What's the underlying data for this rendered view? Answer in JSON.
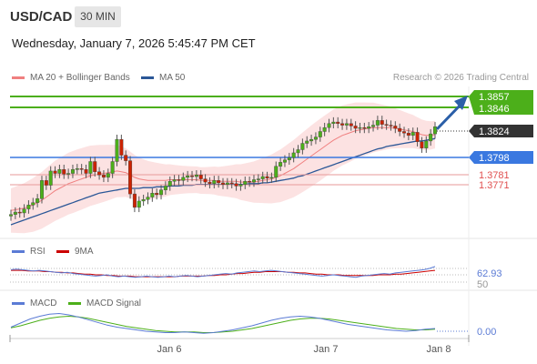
{
  "header": {
    "symbol": "USD/CAD",
    "timeframe": "30 MIN",
    "datetime": "Wednesday, January 7, 2026 5:45:47 PM CET",
    "credit": "Research © 2026 Trading Central"
  },
  "legend_main": [
    {
      "label": "MA 20 + Bollinger Bands",
      "color": "#f08080"
    },
    {
      "label": "MA 50",
      "color": "#2b5797"
    }
  ],
  "legend_rsi": [
    {
      "label": "RSI",
      "color": "#5b7bd5"
    },
    {
      "label": "9MA",
      "color": "#cc0000"
    }
  ],
  "legend_macd": [
    {
      "label": "MACD",
      "color": "#5b7bd5"
    },
    {
      "label": "MACD Signal",
      "color": "#4caf1a"
    }
  ],
  "levels": {
    "target_high": "1.3857",
    "target_low": "1.3846",
    "last": "1.3824",
    "pivot": "1.3798",
    "support1": "1.3781",
    "support2": "1.3771",
    "rsi_value": "62.93",
    "rsi_mid": "50",
    "macd_value": "0.00"
  },
  "colors": {
    "green": "#4caf1a",
    "blue": "#3a78e0",
    "red": "#e05050",
    "dark": "#333333",
    "candle_up": "#4caf1a",
    "candle_down": "#cc2200",
    "band_fill": "#fbd8d8",
    "arrow": "#2b5fa8"
  },
  "chart_data": {
    "type": "candlestick",
    "price_axis": {
      "ylim": [
        1.3685,
        1.3875
      ]
    },
    "x_ticks": [
      "Jan 6",
      "Jan 7",
      "Jan 8"
    ],
    "close": [
      1.3713,
      1.3716,
      1.3715,
      1.372,
      1.3725,
      1.3728,
      1.3733,
      1.3756,
      1.375,
      1.3768,
      1.3765,
      1.377,
      1.3764,
      1.3765,
      1.377,
      1.3771,
      1.377,
      1.3765,
      1.378,
      1.3767,
      1.3763,
      1.376,
      1.3765,
      1.378,
      1.3808,
      1.3788,
      1.3781,
      1.3739,
      1.3722,
      1.373,
      1.3732,
      1.3735,
      1.374,
      1.3738,
      1.3744,
      1.3749,
      1.3755,
      1.3757,
      1.3756,
      1.376,
      1.3762,
      1.3761,
      1.3763,
      1.3758,
      1.3754,
      1.3752,
      1.3756,
      1.3753,
      1.3751,
      1.3753,
      1.3752,
      1.3749,
      1.3751,
      1.3755,
      1.3754,
      1.3757,
      1.3758,
      1.3761,
      1.3759,
      1.376,
      1.3774,
      1.3779,
      1.3782,
      1.3785,
      1.3791,
      1.3795,
      1.3803,
      1.3806,
      1.3808,
      1.3811,
      1.3818,
      1.3823,
      1.3828,
      1.383,
      1.3828,
      1.3826,
      1.3828,
      1.3825,
      1.3822,
      1.3823,
      1.3822,
      1.3824,
      1.3826,
      1.3832,
      1.3827,
      1.3826,
      1.3825,
      1.3822,
      1.3818,
      1.3816,
      1.3813,
      1.3817,
      1.3805,
      1.3797,
      1.3806,
      1.3815,
      1.3824
    ],
    "ma20": [
      1.3718,
      1.3719,
      1.372,
      1.3721,
      1.3723,
      1.3725,
      1.3728,
      1.3731,
      1.3735,
      1.3739,
      1.3743,
      1.3746,
      1.3749,
      1.3752,
      1.3754,
      1.3756,
      1.3758,
      1.376,
      1.3762,
      1.3763,
      1.3764,
      1.3765,
      1.3766,
      1.3767,
      1.3768,
      1.3767,
      1.3766,
      1.3763,
      1.376,
      1.3758,
      1.3757,
      1.3756,
      1.3756,
      1.3756,
      1.3756,
      1.3756,
      1.3757,
      1.3757,
      1.3757,
      1.3757,
      1.3757,
      1.3757,
      1.3757,
      1.3756,
      1.3756,
      1.3756,
      1.3756,
      1.3755,
      1.3755,
      1.3755,
      1.3755,
      1.3755,
      1.3754,
      1.3754,
      1.3754,
      1.3754,
      1.3755,
      1.3756,
      1.3757,
      1.3758,
      1.376,
      1.3762,
      1.3765,
      1.3768,
      1.3771,
      1.3775,
      1.3779,
      1.3783,
      1.3787,
      1.3791,
      1.3795,
      1.3799,
      1.3803,
      1.3807,
      1.381,
      1.3813,
      1.3815,
      1.3817,
      1.3819,
      1.382,
      1.3821,
      1.3822,
      1.3823,
      1.3823,
      1.3823,
      1.3823,
      1.3823,
      1.3822,
      1.3821,
      1.382,
      1.3819,
      1.3818,
      1.3816,
      1.3814,
      1.3813,
      1.3813,
      1.3814
    ],
    "ma50": [
      1.37,
      1.3702,
      1.3704,
      1.3706,
      1.3708,
      1.371,
      1.3712,
      1.3714,
      1.3716,
      1.3718,
      1.372,
      1.3722,
      1.3724,
      1.3726,
      1.3728,
      1.373,
      1.3732,
      1.3734,
      1.3736,
      1.3738,
      1.374,
      1.3741,
      1.3742,
      1.3743,
      1.3744,
      1.3745,
      1.3746,
      1.3746,
      1.3746,
      1.3746,
      1.3747,
      1.3747,
      1.3747,
      1.3748,
      1.3748,
      1.3748,
      1.3749,
      1.3749,
      1.3749,
      1.375,
      1.375,
      1.375,
      1.3751,
      1.3751,
      1.3751,
      1.3751,
      1.3751,
      1.3751,
      1.3751,
      1.3751,
      1.3751,
      1.3751,
      1.3751,
      1.3751,
      1.3752,
      1.3752,
      1.3752,
      1.3753,
      1.3753,
      1.3754,
      1.3755,
      1.3756,
      1.3757,
      1.3758,
      1.3759,
      1.3761,
      1.3762,
      1.3764,
      1.3766,
      1.3768,
      1.377,
      1.3772,
      1.3774,
      1.3776,
      1.3778,
      1.378,
      1.3782,
      1.3784,
      1.3786,
      1.3788,
      1.379,
      1.3792,
      1.3794,
      1.3796,
      1.3797,
      1.3799,
      1.38,
      1.3801,
      1.3802,
      1.3803,
      1.3804,
      1.3805,
      1.3806,
      1.3806,
      1.3807,
      1.3808,
      1.3809
    ],
    "bb_width": 0.0028,
    "rsi": [
      58,
      59,
      58,
      57,
      56,
      57,
      56,
      55,
      54,
      53,
      54,
      52,
      51,
      50,
      49,
      48,
      49,
      50,
      48,
      47,
      48,
      47,
      46,
      47,
      48,
      47,
      46,
      47,
      48,
      47,
      48,
      49,
      48,
      47,
      48,
      49,
      50,
      51,
      52,
      51,
      53,
      54,
      55,
      56,
      55,
      56,
      57,
      56,
      55,
      54,
      53,
      52,
      51,
      50,
      49,
      48,
      49,
      50,
      49,
      48,
      47,
      46,
      48,
      49,
      50,
      51,
      52,
      51,
      53,
      54,
      55,
      56,
      57,
      58,
      60,
      62.93
    ],
    "rsi_ma": [
      57,
      57,
      57,
      56,
      56,
      56,
      55,
      55,
      54,
      54,
      53,
      53,
      52,
      51,
      51,
      50,
      50,
      49,
      49,
      48,
      48,
      48,
      47,
      47,
      47,
      47,
      47,
      47,
      47,
      47,
      48,
      48,
      48,
      48,
      48,
      49,
      49,
      50,
      50,
      51,
      52,
      52,
      53,
      54,
      54,
      55,
      55,
      55,
      55,
      54,
      54,
      53,
      53,
      52,
      51,
      51,
      50,
      50,
      50,
      49,
      49,
      49,
      49,
      49,
      49,
      50,
      50,
      50,
      51,
      51,
      52,
      53,
      54,
      55,
      56,
      57
    ],
    "macd": [
      0.0002,
      0.0008,
      0.0014,
      0.0018,
      0.0021,
      0.0022,
      0.002,
      0.0017,
      0.0013,
      0.0009,
      0.0005,
      0.0002,
      0.0,
      -0.0002,
      -0.0004,
      -0.0005,
      -0.0006,
      -0.0006,
      -0.0005,
      -0.0006,
      -0.0007,
      -0.0006,
      -0.0004,
      -0.0002,
      0.0001,
      0.0004,
      0.0008,
      0.0012,
      0.0015,
      0.0017,
      0.0018,
      0.0017,
      0.0015,
      0.0012,
      0.0009,
      0.0006,
      0.0004,
      0.0002,
      0.0,
      -0.0002,
      -0.0003,
      -0.0004,
      -0.0003,
      -0.0001,
      0.0
    ],
    "macd_signal": [
      0.0001,
      0.0004,
      0.0008,
      0.0012,
      0.0015,
      0.0017,
      0.0018,
      0.0017,
      0.0015,
      0.0012,
      0.0009,
      0.0006,
      0.0003,
      0.0001,
      -0.0001,
      -0.0003,
      -0.0004,
      -0.0005,
      -0.0005,
      -0.0005,
      -0.0006,
      -0.0006,
      -0.0005,
      -0.0004,
      -0.0002,
      0.0,
      0.0003,
      0.0006,
      0.0009,
      0.0012,
      0.0014,
      0.0015,
      0.0015,
      0.0014,
      0.0012,
      0.001,
      0.0008,
      0.0006,
      0.0004,
      0.0002,
      0.0,
      -0.0001,
      -0.0002,
      -0.0002,
      -0.0001
    ],
    "macd_ylim": [
      -0.0012,
      0.0028
    ],
    "rsi_ylim": [
      30,
      70
    ]
  }
}
